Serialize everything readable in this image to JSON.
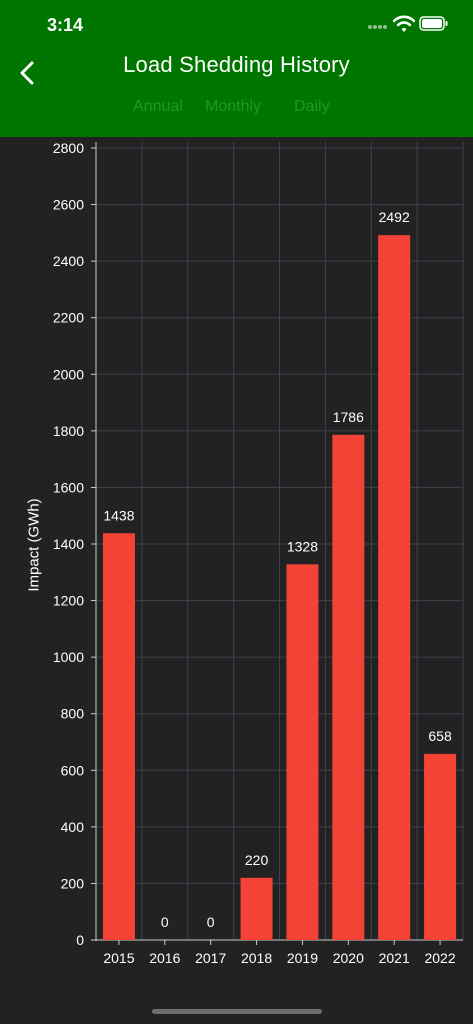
{
  "status": {
    "time": "3:14"
  },
  "header": {
    "title": "Load Shedding History",
    "tabs": [
      "Annual",
      "Monthly",
      "Daily"
    ]
  },
  "icons": {
    "back": "chevron-left-icon",
    "signal": "cellular-signal-icon",
    "wifi": "wifi-icon",
    "battery": "battery-icon"
  },
  "colors": {
    "header_bg": "#007500",
    "tab_text": "#1f9a1f",
    "bar": "#f44336",
    "background": "#222222",
    "grid": "#3d4350"
  },
  "chart_data": {
    "type": "bar",
    "categories": [
      "2015",
      "2016",
      "2017",
      "2018",
      "2019",
      "2020",
      "2021",
      "2022"
    ],
    "values": [
      1438,
      0,
      0,
      220,
      1328,
      1786,
      2492,
      658
    ],
    "data_labels": [
      "1438",
      "0",
      "0",
      "220",
      "1328",
      "1786",
      "2492",
      "658"
    ],
    "title": "",
    "xlabel": "",
    "ylabel": "Impact (GWh)",
    "ylim": [
      0,
      2800
    ],
    "yticks": [
      0,
      200,
      400,
      600,
      800,
      1000,
      1200,
      1400,
      1600,
      1800,
      2000,
      2200,
      2400,
      2600,
      2800
    ],
    "grid": true,
    "legend": "none"
  }
}
